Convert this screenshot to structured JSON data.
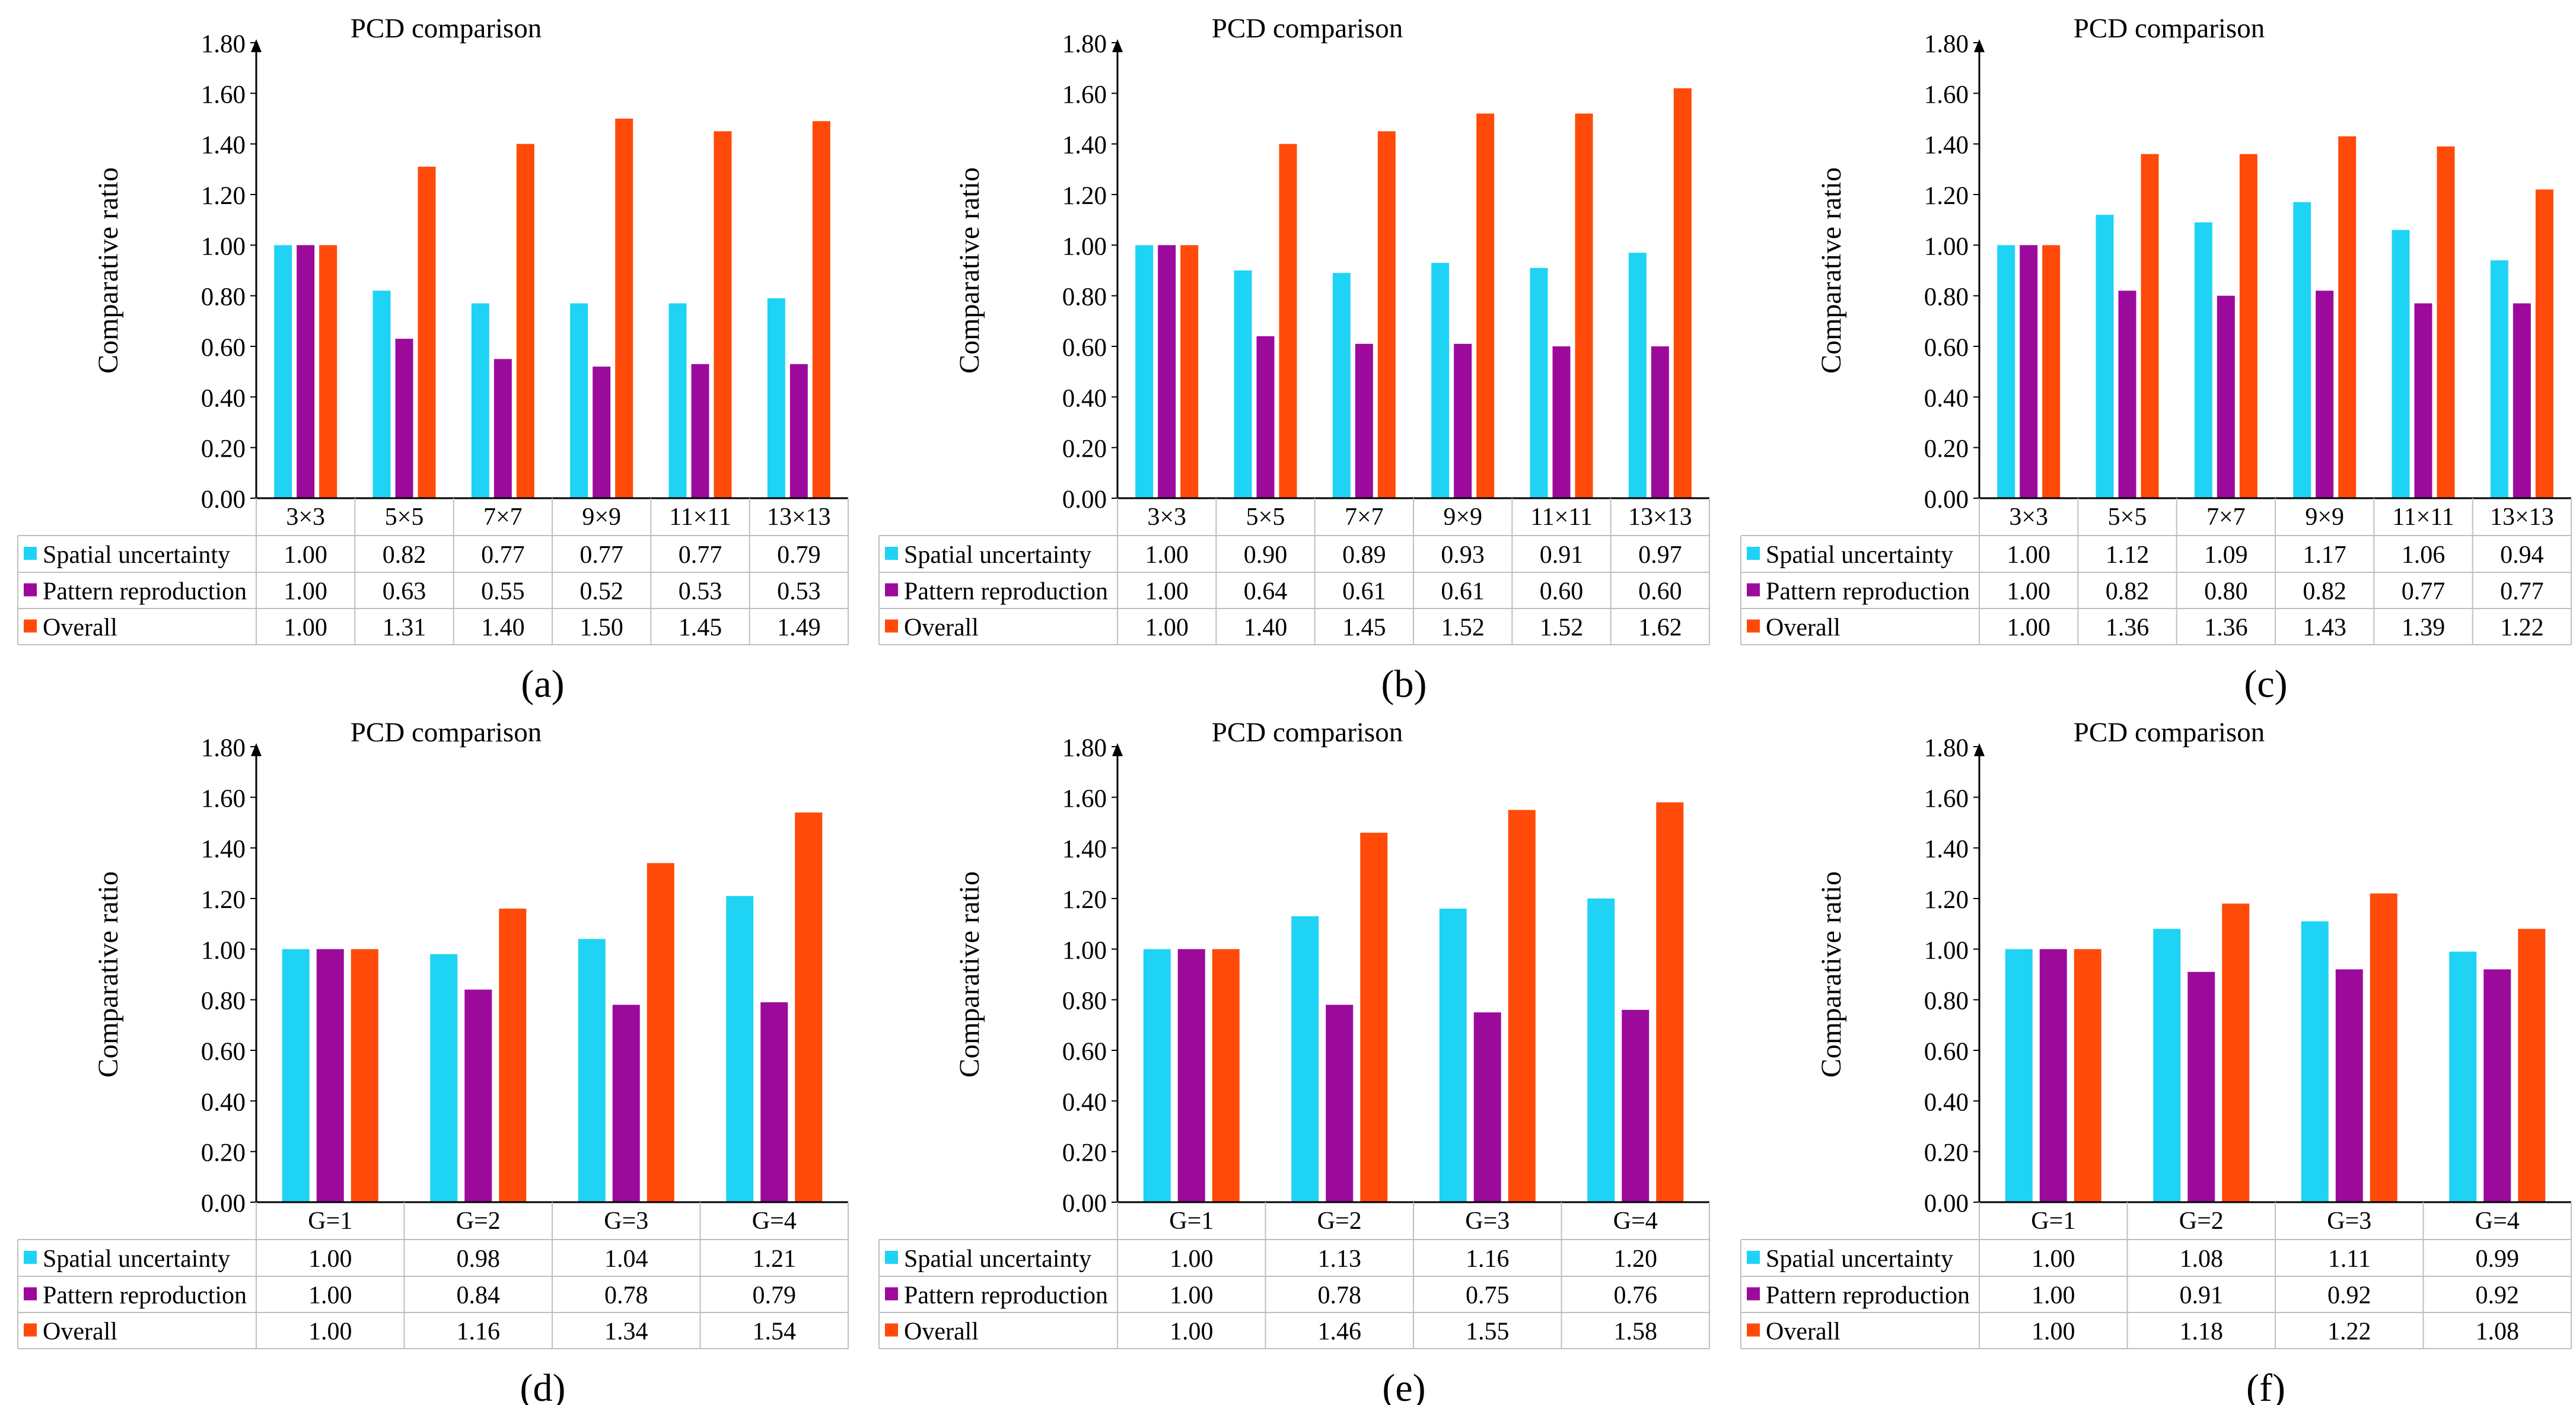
{
  "figure": {
    "legend_labels": [
      "Spatial uncertainty",
      "Pattern reproduction",
      "Overall"
    ]
  },
  "colors": {
    "spatial": "#1FD3F5",
    "pattern": "#9C0A9C",
    "overall": "#FF4A0A",
    "axis": "#000000",
    "grid": "#BFBFBF"
  },
  "chart_data": [
    {
      "id": "a",
      "caption": "(a)",
      "type": "bar",
      "title": "PCD comparison",
      "ylabel": "Comparative ratio",
      "ylim": [
        0,
        1.8
      ],
      "yticks": [
        "0.00",
        "0.20",
        "0.40",
        "0.60",
        "0.80",
        "1.00",
        "1.20",
        "1.40",
        "1.60",
        "1.80"
      ],
      "categories": [
        "3×3",
        "5×5",
        "7×7",
        "9×9",
        "11×11",
        "13×13"
      ],
      "series": [
        {
          "name": "Spatial uncertainty",
          "values": [
            1.0,
            0.82,
            0.77,
            0.77,
            0.77,
            0.79
          ],
          "labels": [
            "1.00",
            "0.82",
            "0.77",
            "0.77",
            "0.77",
            "0.79"
          ]
        },
        {
          "name": "Pattern reproduction",
          "values": [
            1.0,
            0.63,
            0.55,
            0.52,
            0.53,
            0.53
          ],
          "labels": [
            "1.00",
            "0.63",
            "0.55",
            "0.52",
            "0.53",
            "0.53"
          ]
        },
        {
          "name": "Overall",
          "values": [
            1.0,
            1.31,
            1.4,
            1.5,
            1.45,
            1.49
          ],
          "labels": [
            "1.00",
            "1.31",
            "1.40",
            "1.50",
            "1.45",
            "1.49"
          ]
        }
      ]
    },
    {
      "id": "b",
      "caption": "(b)",
      "type": "bar",
      "title": "PCD comparison",
      "ylabel": "Comparative ratio",
      "ylim": [
        0,
        1.8
      ],
      "yticks": [
        "0.00",
        "0.20",
        "0.40",
        "0.60",
        "0.80",
        "1.00",
        "1.20",
        "1.40",
        "1.60",
        "1.80"
      ],
      "categories": [
        "3×3",
        "5×5",
        "7×7",
        "9×9",
        "11×11",
        "13×13"
      ],
      "series": [
        {
          "name": "Spatial uncertainty",
          "values": [
            1.0,
            0.9,
            0.89,
            0.93,
            0.91,
            0.97
          ],
          "labels": [
            "1.00",
            "0.90",
            "0.89",
            "0.93",
            "0.91",
            "0.97"
          ]
        },
        {
          "name": "Pattern reproduction",
          "values": [
            1.0,
            0.64,
            0.61,
            0.61,
            0.6,
            0.6
          ],
          "labels": [
            "1.00",
            "0.64",
            "0.61",
            "0.61",
            "0.60",
            "0.60"
          ]
        },
        {
          "name": "Overall",
          "values": [
            1.0,
            1.4,
            1.45,
            1.52,
            1.52,
            1.62
          ],
          "labels": [
            "1.00",
            "1.40",
            "1.45",
            "1.52",
            "1.52",
            "1.62"
          ]
        }
      ]
    },
    {
      "id": "c",
      "caption": "(c)",
      "type": "bar",
      "title": "PCD comparison",
      "ylabel": "Comparative ratio",
      "ylim": [
        0,
        1.8
      ],
      "yticks": [
        "0.00",
        "0.20",
        "0.40",
        "0.60",
        "0.80",
        "1.00",
        "1.20",
        "1.40",
        "1.60",
        "1.80"
      ],
      "categories": [
        "3×3",
        "5×5",
        "7×7",
        "9×9",
        "11×11",
        "13×13"
      ],
      "series": [
        {
          "name": "Spatial uncertainty",
          "values": [
            1.0,
            1.12,
            1.09,
            1.17,
            1.06,
            0.94
          ],
          "labels": [
            "1.00",
            "1.12",
            "1.09",
            "1.17",
            "1.06",
            "0.94"
          ]
        },
        {
          "name": "Pattern reproduction",
          "values": [
            1.0,
            0.82,
            0.8,
            0.82,
            0.77,
            0.77
          ],
          "labels": [
            "1.00",
            "0.82",
            "0.80",
            "0.82",
            "0.77",
            "0.77"
          ]
        },
        {
          "name": "Overall",
          "values": [
            1.0,
            1.36,
            1.36,
            1.43,
            1.39,
            1.22
          ],
          "labels": [
            "1.00",
            "1.36",
            "1.36",
            "1.43",
            "1.39",
            "1.22"
          ]
        }
      ]
    },
    {
      "id": "d",
      "caption": "(d)",
      "type": "bar",
      "title": "PCD comparison",
      "ylabel": "Comparative ratio",
      "ylim": [
        0,
        1.8
      ],
      "yticks": [
        "0.00",
        "0.20",
        "0.40",
        "0.60",
        "0.80",
        "1.00",
        "1.20",
        "1.40",
        "1.60",
        "1.80"
      ],
      "categories": [
        "G=1",
        "G=2",
        "G=3",
        "G=4"
      ],
      "series": [
        {
          "name": "Spatial uncertainty",
          "values": [
            1.0,
            0.98,
            1.04,
            1.21
          ],
          "labels": [
            "1.00",
            "0.98",
            "1.04",
            "1.21"
          ]
        },
        {
          "name": "Pattern reproduction",
          "values": [
            1.0,
            0.84,
            0.78,
            0.79
          ],
          "labels": [
            "1.00",
            "0.84",
            "0.78",
            "0.79"
          ]
        },
        {
          "name": "Overall",
          "values": [
            1.0,
            1.16,
            1.34,
            1.54
          ],
          "labels": [
            "1.00",
            "1.16",
            "1.34",
            "1.54"
          ]
        }
      ]
    },
    {
      "id": "e",
      "caption": "(e)",
      "type": "bar",
      "title": "PCD comparison",
      "ylabel": "Comparative ratio",
      "ylim": [
        0,
        1.8
      ],
      "yticks": [
        "0.00",
        "0.20",
        "0.40",
        "0.60",
        "0.80",
        "1.00",
        "1.20",
        "1.40",
        "1.60",
        "1.80"
      ],
      "categories": [
        "G=1",
        "G=2",
        "G=3",
        "G=4"
      ],
      "series": [
        {
          "name": "Spatial uncertainty",
          "values": [
            1.0,
            1.13,
            1.16,
            1.2
          ],
          "labels": [
            "1.00",
            "1.13",
            "1.16",
            "1.20"
          ]
        },
        {
          "name": "Pattern reproduction",
          "values": [
            1.0,
            0.78,
            0.75,
            0.76
          ],
          "labels": [
            "1.00",
            "0.78",
            "0.75",
            "0.76"
          ]
        },
        {
          "name": "Overall",
          "values": [
            1.0,
            1.46,
            1.55,
            1.58
          ],
          "labels": [
            "1.00",
            "1.46",
            "1.55",
            "1.58"
          ]
        }
      ]
    },
    {
      "id": "f",
      "caption": "(f)",
      "type": "bar",
      "title": "PCD comparison",
      "ylabel": "Comparative ratio",
      "ylim": [
        0,
        1.8
      ],
      "yticks": [
        "0.00",
        "0.20",
        "0.40",
        "0.60",
        "0.80",
        "1.00",
        "1.20",
        "1.40",
        "1.60",
        "1.80"
      ],
      "categories": [
        "G=1",
        "G=2",
        "G=3",
        "G=4"
      ],
      "series": [
        {
          "name": "Spatial uncertainty",
          "values": [
            1.0,
            1.08,
            1.11,
            0.99
          ],
          "labels": [
            "1.00",
            "1.08",
            "1.11",
            "0.99"
          ]
        },
        {
          "name": "Pattern reproduction",
          "values": [
            1.0,
            0.91,
            0.92,
            0.92
          ],
          "labels": [
            "1.00",
            "0.91",
            "0.92",
            "0.92"
          ]
        },
        {
          "name": "Overall",
          "values": [
            1.0,
            1.18,
            1.22,
            1.08
          ],
          "labels": [
            "1.00",
            "1.18",
            "1.22",
            "1.08"
          ]
        }
      ]
    }
  ]
}
